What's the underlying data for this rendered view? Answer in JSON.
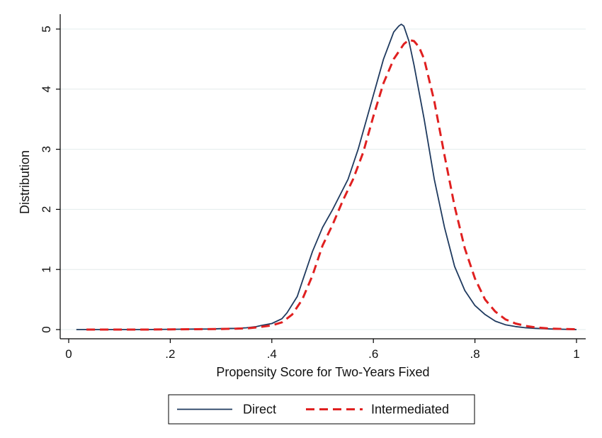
{
  "chart_data": {
    "type": "line",
    "title": "",
    "xlabel": "Propensity Score for Two-Years Fixed",
    "ylabel": "Distribution",
    "xlim": [
      0,
      1
    ],
    "ylim": [
      0,
      5.2
    ],
    "xticks": [
      {
        "value": 0,
        "label": "0"
      },
      {
        "value": 0.2,
        "label": ".2"
      },
      {
        "value": 0.4,
        "label": ".4"
      },
      {
        "value": 0.6,
        "label": ".6"
      },
      {
        "value": 0.8,
        "label": ".8"
      },
      {
        "value": 1,
        "label": "1"
      }
    ],
    "yticks": [
      {
        "value": 0,
        "label": "0"
      },
      {
        "value": 1,
        "label": "1"
      },
      {
        "value": 2,
        "label": "2"
      },
      {
        "value": 3,
        "label": "3"
      },
      {
        "value": 4,
        "label": "4"
      },
      {
        "value": 5,
        "label": "5"
      }
    ],
    "grid": "horizontal",
    "legend_position": "bottom",
    "series": [
      {
        "name": "Direct",
        "color": "#1f3a5f",
        "dash": "solid",
        "x": [
          0.015,
          0.05,
          0.1,
          0.15,
          0.2,
          0.25,
          0.28,
          0.3,
          0.33,
          0.35,
          0.37,
          0.38,
          0.4,
          0.42,
          0.43,
          0.45,
          0.46,
          0.47,
          0.48,
          0.5,
          0.52,
          0.55,
          0.57,
          0.6,
          0.62,
          0.64,
          0.65,
          0.655,
          0.66,
          0.67,
          0.68,
          0.7,
          0.72,
          0.74,
          0.76,
          0.78,
          0.8,
          0.82,
          0.84,
          0.86,
          0.88,
          0.9,
          0.92,
          0.95,
          1.0
        ],
        "y": [
          0.0,
          0.0,
          0.0,
          0.0,
          0.005,
          0.008,
          0.01,
          0.015,
          0.02,
          0.03,
          0.05,
          0.07,
          0.1,
          0.18,
          0.28,
          0.55,
          0.8,
          1.05,
          1.3,
          1.7,
          2.0,
          2.5,
          3.0,
          3.9,
          4.5,
          4.95,
          5.05,
          5.08,
          5.05,
          4.8,
          4.4,
          3.5,
          2.5,
          1.7,
          1.05,
          0.65,
          0.4,
          0.25,
          0.14,
          0.08,
          0.05,
          0.03,
          0.02,
          0.01,
          0.0
        ]
      },
      {
        "name": "Intermediated",
        "color": "#e02020",
        "dash": "dashed",
        "x": [
          0.035,
          0.05,
          0.1,
          0.15,
          0.2,
          0.25,
          0.3,
          0.33,
          0.35,
          0.37,
          0.4,
          0.42,
          0.44,
          0.46,
          0.48,
          0.5,
          0.52,
          0.54,
          0.56,
          0.58,
          0.6,
          0.62,
          0.64,
          0.66,
          0.67,
          0.68,
          0.69,
          0.7,
          0.72,
          0.74,
          0.76,
          0.78,
          0.8,
          0.82,
          0.84,
          0.86,
          0.88,
          0.9,
          0.92,
          0.95,
          1.0
        ],
        "y": [
          0.0,
          0.0,
          0.0,
          0.0,
          0.003,
          0.006,
          0.01,
          0.015,
          0.02,
          0.035,
          0.07,
          0.12,
          0.25,
          0.5,
          0.9,
          1.4,
          1.75,
          2.15,
          2.5,
          2.95,
          3.55,
          4.1,
          4.5,
          4.75,
          4.82,
          4.8,
          4.7,
          4.5,
          3.8,
          2.9,
          2.05,
          1.35,
          0.85,
          0.5,
          0.3,
          0.17,
          0.1,
          0.06,
          0.035,
          0.015,
          0.005
        ]
      }
    ]
  }
}
